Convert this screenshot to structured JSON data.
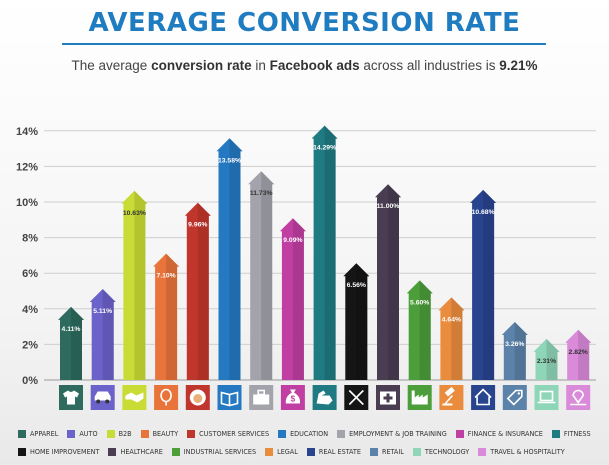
{
  "header": {
    "title": "AVERAGE CONVERSION RATE",
    "subtitle_pre": "The average ",
    "subtitle_b1": "conversion rate",
    "subtitle_mid": " in ",
    "subtitle_b2": "Facebook ads",
    "subtitle_post": " across all industries is ",
    "subtitle_b3": "9.21%"
  },
  "chart_data": {
    "type": "bar",
    "title": "AVERAGE CONVERSION RATE",
    "ylim": [
      0,
      14
    ],
    "yticks": [
      "0%",
      "2%",
      "4%",
      "6%",
      "8%",
      "10%",
      "12%",
      "14%"
    ],
    "grid": true,
    "legend": "bottom",
    "categories": [
      {
        "name": "APPAREL",
        "value": 4.11,
        "label": "4.11%",
        "color": "#2e6b5e",
        "icon": "shirt-icon"
      },
      {
        "name": "AUTO",
        "value": 5.11,
        "label": "5.11%",
        "color": "#6b63c9",
        "icon": "car-icon"
      },
      {
        "name": "B2B",
        "value": 10.63,
        "label": "10.63%",
        "color": "#c9dc35",
        "icon": "handshake-icon"
      },
      {
        "name": "BEAUTY",
        "value": 7.1,
        "label": "7.10%",
        "color": "#e8743b",
        "icon": "mirror-icon"
      },
      {
        "name": "CUSTOMER SERVICES",
        "value": 9.96,
        "label": "9.96%",
        "color": "#c0362c",
        "icon": "headset-icon"
      },
      {
        "name": "EDUCATION",
        "value": 13.58,
        "label": "13.58%",
        "color": "#2479c2",
        "icon": "book-icon"
      },
      {
        "name": "EMPLOYMENT & JOB TRAINING",
        "value": 11.73,
        "label": "11.73%",
        "color": "#a3a3ab",
        "icon": "briefcase-icon"
      },
      {
        "name": "FINANCE & INSURANCE",
        "value": 9.09,
        "label": "9.09%",
        "color": "#c13fa3",
        "icon": "money-bag-icon"
      },
      {
        "name": "FITNESS",
        "value": 14.29,
        "label": "14.29%",
        "color": "#1f7a82",
        "icon": "muscle-icon"
      },
      {
        "name": "HOME IMPROVEMENT",
        "value": 6.56,
        "label": "6.56%",
        "color": "#151515",
        "icon": "tools-icon"
      },
      {
        "name": "HEALTHCARE",
        "value": 11.0,
        "label": "11.00%",
        "color": "#4a3d52",
        "icon": "first-aid-icon"
      },
      {
        "name": "INDUSTRIAL SERVICES",
        "value": 5.6,
        "label": "5.60%",
        "color": "#4c9e3a",
        "icon": "factory-icon"
      },
      {
        "name": "LEGAL",
        "value": 4.64,
        "label": "4.64%",
        "color": "#ea8c3e",
        "icon": "gavel-icon"
      },
      {
        "name": "REAL ESTATE",
        "value": 10.68,
        "label": "10.68%",
        "color": "#28448f",
        "icon": "house-icon"
      },
      {
        "name": "RETAIL",
        "value": 3.26,
        "label": "3.26%",
        "color": "#5b82a8",
        "icon": "tag-icon"
      },
      {
        "name": "TECHNOLOGY",
        "value": 2.31,
        "label": "2.31%",
        "color": "#8fd6b8",
        "icon": "laptop-icon"
      },
      {
        "name": "TRAVEL & HOSPITALITY",
        "value": 2.82,
        "label": "2.82%",
        "color": "#d98ad9",
        "icon": "map-pin-icon"
      }
    ]
  }
}
